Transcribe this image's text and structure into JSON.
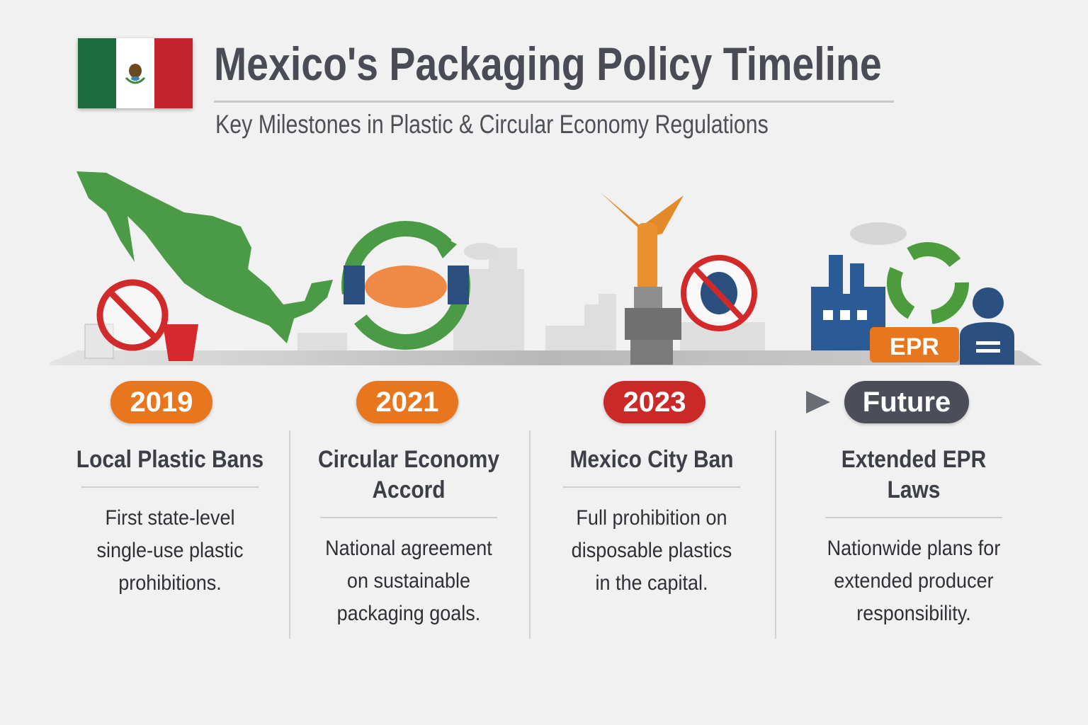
{
  "header": {
    "title": "Mexico's Packaging Policy Timeline",
    "subtitle": "Key Milestones in Plastic & Circular Economy Regulations",
    "flag_icon": "mexico-flag",
    "flag_colors": [
      "#1e6b3e",
      "#ffffff",
      "#c4242b"
    ]
  },
  "timeline": {
    "milestones": [
      {
        "year": "2019",
        "color": "#e8761e",
        "title": "Local Plastic Bans",
        "description": [
          "First state-level",
          "single-use plastic",
          "prohibitions."
        ],
        "icon": "mexico-map-no-plastic-icon"
      },
      {
        "year": "2021",
        "color": "#e8761e",
        "title": "Circular Economy Accord",
        "title_lines": [
          "Circular Economy",
          "Accord"
        ],
        "description": [
          "National agreement",
          "on sustainable",
          "packaging goals."
        ],
        "icon": "handshake-recycle-icon"
      },
      {
        "year": "2023",
        "color": "#c92a28",
        "title": "Mexico City Ban",
        "description": [
          "Full prohibition on",
          "disposable plastics",
          "in the capital."
        ],
        "icon": "angel-of-independence-no-plastic-icon"
      },
      {
        "year": "Future",
        "color": "#4b4e58",
        "title": "Extended EPR Laws",
        "description": [
          "Nationwide plans for",
          "extended producer",
          "responsibility."
        ],
        "icon": "factory-recycle-epr-icon",
        "badge": "EPR"
      }
    ]
  }
}
